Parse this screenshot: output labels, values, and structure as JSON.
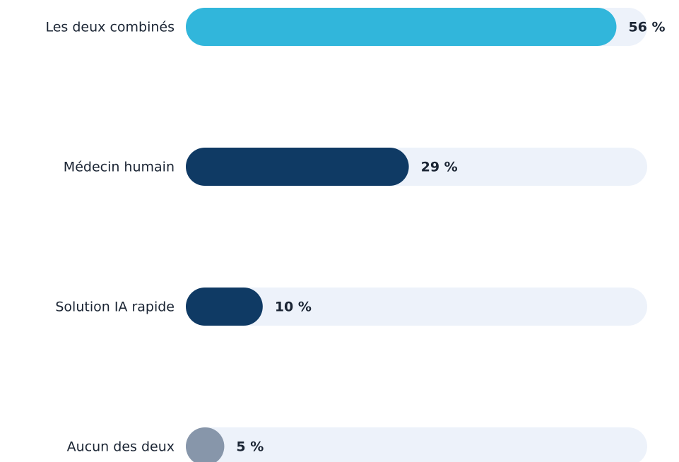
{
  "chart_data": {
    "type": "hbar",
    "categories": [
      "Les deux combinés",
      "Médecin humain",
      "Solution IA rapide",
      "Aucun des deux"
    ],
    "values": [
      56,
      29,
      10,
      5
    ],
    "value_labels": [
      "56 %",
      "29 %",
      "10 %",
      "5 %"
    ],
    "colors": [
      "#31b6db",
      "#0f3a64",
      "#0f3a64",
      "#8796aa"
    ],
    "track_color": "#edf2fa",
    "xlim": [
      0,
      60
    ]
  }
}
